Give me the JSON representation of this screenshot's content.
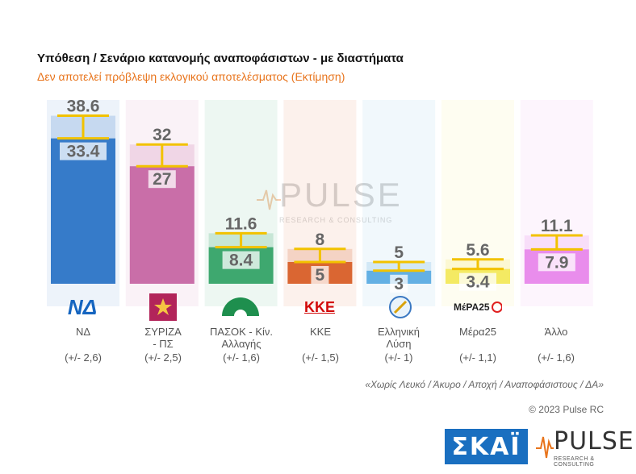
{
  "header": {
    "title": "Υπόθεση / Σενάριο κατανομής αναποφάσιστων - με διαστήματα",
    "subtitle": "Δεν αποτελεί πρόβλεψη εκλογικού αποτελέσματος   (Εκτίμηση)"
  },
  "colors": {
    "bar_nd": "#1565c0",
    "bar_syriza": "#c0579a",
    "bar_pasok": "#1e9a58",
    "bar_kke": "#d44e12",
    "bar_elliniki": "#4aa3df",
    "bar_mera25": "#f2e64a",
    "bar_allo": "#e57ae9",
    "whisker": "#f2c200"
  },
  "chart_data": {
    "type": "bar",
    "title": "Υπόθεση / Σενάριο κατανομής αναποφάσιστων - με διαστήματα",
    "categories": [
      "ΝΔ",
      "ΣΥΡΙΖΑ - ΠΣ",
      "ΠΑΣΟΚ - Κίν. Αλλαγής",
      "ΚΚΕ",
      "Ελληνική Λύση",
      "Μέρα25",
      "Άλλο"
    ],
    "series": [
      {
        "name": "low",
        "values": [
          33.4,
          27,
          8.4,
          5,
          3,
          3.4,
          7.9
        ]
      },
      {
        "name": "high",
        "values": [
          38.6,
          32,
          11.6,
          8,
          5,
          5.6,
          11.1
        ]
      }
    ],
    "margins": [
      "(+/- 2,6)",
      "(+/- 2,5)",
      "(+/- 1,6)",
      "(+/- 1,5)",
      "(+/- 1)",
      "(+/- 1,1)",
      "(+/- 1,6)"
    ],
    "ylim": [
      0,
      40
    ]
  },
  "parties": [
    {
      "label1": "ΝΔ",
      "label2": "",
      "margin": "(+/- 2,6)",
      "low": "33.4",
      "high": "38.6",
      "logo": "ΝΔ"
    },
    {
      "label1": "ΣΥΡΙΖΑ",
      "label2": "- ΠΣ",
      "margin": "(+/- 2,5)",
      "low": "27",
      "high": "32",
      "logo": ""
    },
    {
      "label1": "ΠΑΣΟΚ - Κίν.",
      "label2": "Αλλαγής",
      "margin": "(+/- 1,6)",
      "low": "8.4",
      "high": "11.6",
      "logo": ""
    },
    {
      "label1": "ΚΚΕ",
      "label2": "",
      "margin": "(+/- 1,5)",
      "low": "5",
      "high": "8",
      "logo": "ΚΚΕ"
    },
    {
      "label1": "Ελληνική",
      "label2": "Λύση",
      "margin": "(+/- 1)",
      "low": "3",
      "high": "5",
      "logo": ""
    },
    {
      "label1": "Μέρα25",
      "label2": "",
      "margin": "(+/- 1,1)",
      "low": "3.4",
      "high": "5.6",
      "logo": "ΜέΡΑ25"
    },
    {
      "label1": "Άλλο",
      "label2": "",
      "margin": "(+/- 1,6)",
      "low": "7.9",
      "high": "11.1",
      "logo": ""
    }
  ],
  "footer": {
    "note": "«Χωρίς Λευκό / Άκυρο / Αποχή / Αναποφάσιστους / ΔΑ»",
    "copyright": "© 2023 Pulse RC"
  },
  "logos": {
    "skai": "ΣΚΑΪ",
    "pulse": "PULSE",
    "pulse_sub": "RESEARCH & CONSULTING"
  }
}
